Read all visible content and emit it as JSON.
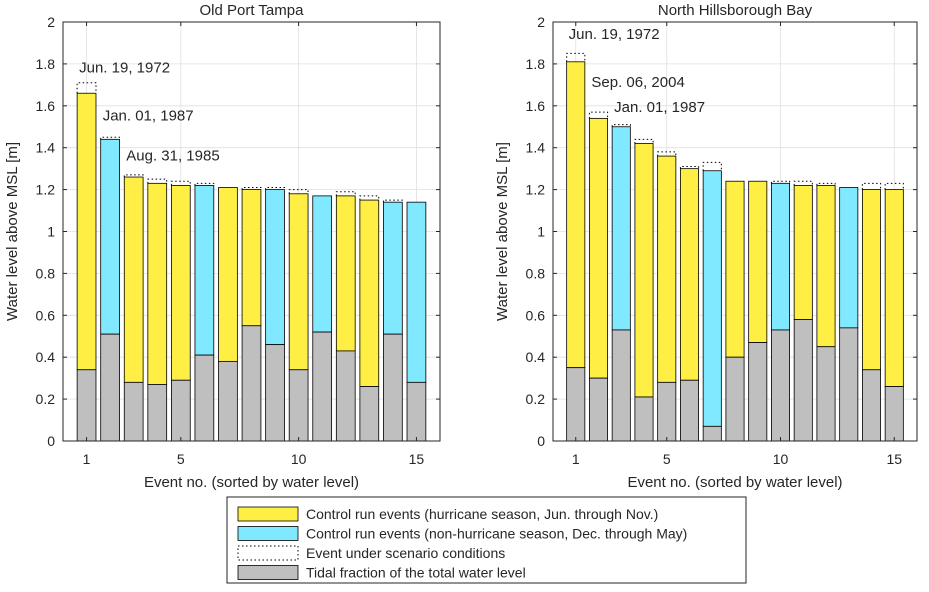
{
  "chart_data": [
    {
      "type": "bar",
      "title": "Old Port Tampa",
      "xlabel": "Event no. (sorted by water level)",
      "ylabel": "Water level above MSL [m]",
      "ylim": [
        0,
        2
      ],
      "yticks": [
        "0",
        "0.2",
        "0.4",
        "0.6",
        "0.8",
        "1",
        "1.2",
        "1.4",
        "1.6",
        "1.8",
        "2"
      ],
      "xticks": [
        1,
        5,
        10,
        15
      ],
      "grid": true,
      "events": [
        {
          "total": 1.66,
          "tidal": 0.34,
          "season": "hurricane",
          "scenario": 1.71
        },
        {
          "total": 1.44,
          "tidal": 0.51,
          "season": "non-hurricane",
          "scenario": 1.45
        },
        {
          "total": 1.26,
          "tidal": 0.28,
          "season": "hurricane",
          "scenario": 1.27
        },
        {
          "total": 1.23,
          "tidal": 0.27,
          "season": "hurricane",
          "scenario": 1.25
        },
        {
          "total": 1.22,
          "tidal": 0.29,
          "season": "hurricane",
          "scenario": 1.24
        },
        {
          "total": 1.22,
          "tidal": 0.41,
          "season": "non-hurricane",
          "scenario": 1.23
        },
        {
          "total": 1.21,
          "tidal": 0.38,
          "season": "hurricane",
          "scenario": 1.21
        },
        {
          "total": 1.2,
          "tidal": 0.55,
          "season": "hurricane",
          "scenario": 1.21
        },
        {
          "total": 1.2,
          "tidal": 0.46,
          "season": "non-hurricane",
          "scenario": 1.21
        },
        {
          "total": 1.18,
          "tidal": 0.34,
          "season": "hurricane",
          "scenario": 1.2
        },
        {
          "total": 1.17,
          "tidal": 0.52,
          "season": "non-hurricane",
          "scenario": 1.17
        },
        {
          "total": 1.17,
          "tidal": 0.43,
          "season": "hurricane",
          "scenario": 1.19
        },
        {
          "total": 1.15,
          "tidal": 0.26,
          "season": "hurricane",
          "scenario": 1.17
        },
        {
          "total": 1.14,
          "tidal": 0.51,
          "season": "non-hurricane",
          "scenario": 1.15
        },
        {
          "total": 1.14,
          "tidal": 0.28,
          "season": "non-hurricane",
          "scenario": 1.14
        }
      ],
      "annotations": [
        {
          "text": "Jun. 19, 1972",
          "x": 1,
          "y": 1.76
        },
        {
          "text": "Jan. 01, 1987",
          "x": 2,
          "y": 1.53
        },
        {
          "text": "Aug. 31, 1985",
          "x": 3,
          "y": 1.34
        }
      ]
    },
    {
      "type": "bar",
      "title": "North Hillsborough Bay",
      "xlabel": "Event no. (sorted by water level)",
      "ylabel": "Water level above MSL [m]",
      "ylim": [
        0,
        2
      ],
      "yticks": [
        "0",
        "0.2",
        "0.4",
        "0.6",
        "0.8",
        "1",
        "1.2",
        "1.4",
        "1.6",
        "1.8",
        "2"
      ],
      "xticks": [
        1,
        5,
        10,
        15
      ],
      "grid": true,
      "events": [
        {
          "total": 1.81,
          "tidal": 0.35,
          "season": "hurricane",
          "scenario": 1.85
        },
        {
          "total": 1.54,
          "tidal": 0.3,
          "season": "hurricane",
          "scenario": 1.57
        },
        {
          "total": 1.5,
          "tidal": 0.53,
          "season": "non-hurricane",
          "scenario": 1.51
        },
        {
          "total": 1.42,
          "tidal": 0.21,
          "season": "hurricane",
          "scenario": 1.44
        },
        {
          "total": 1.36,
          "tidal": 0.28,
          "season": "hurricane",
          "scenario": 1.38
        },
        {
          "total": 1.3,
          "tidal": 0.29,
          "season": "hurricane",
          "scenario": 1.31
        },
        {
          "total": 1.29,
          "tidal": 0.07,
          "season": "non-hurricane",
          "scenario": 1.33
        },
        {
          "total": 1.24,
          "tidal": 0.4,
          "season": "hurricane",
          "scenario": 1.24
        },
        {
          "total": 1.24,
          "tidal": 0.47,
          "season": "hurricane",
          "scenario": 1.24
        },
        {
          "total": 1.23,
          "tidal": 0.53,
          "season": "non-hurricane",
          "scenario": 1.24
        },
        {
          "total": 1.22,
          "tidal": 0.58,
          "season": "hurricane",
          "scenario": 1.24
        },
        {
          "total": 1.22,
          "tidal": 0.45,
          "season": "hurricane",
          "scenario": 1.23
        },
        {
          "total": 1.21,
          "tidal": 0.54,
          "season": "non-hurricane",
          "scenario": 1.21
        },
        {
          "total": 1.2,
          "tidal": 0.34,
          "season": "hurricane",
          "scenario": 1.23
        },
        {
          "total": 1.2,
          "tidal": 0.26,
          "season": "hurricane",
          "scenario": 1.23
        }
      ],
      "annotations": [
        {
          "text": "Jun. 19, 1972",
          "x": 1,
          "y": 1.92
        },
        {
          "text": "Sep. 06, 2004",
          "x": 2,
          "y": 1.69
        },
        {
          "text": "Jan. 01, 1987",
          "x": 3,
          "y": 1.57
        }
      ]
    }
  ],
  "legend": {
    "placement": "bottom-center",
    "entries": [
      {
        "label": "Control run events (hurricane season, Jun. through Nov.)",
        "kind": "hurricane"
      },
      {
        "label": "Control run events (non-hurricane season, Dec. through May)",
        "kind": "non-hurricane"
      },
      {
        "label": "Event under scenario conditions",
        "kind": "scenario"
      },
      {
        "label": "Tidal fraction of the total water level",
        "kind": "tidal"
      }
    ]
  },
  "colors": {
    "hurricane": "#ffee44",
    "non-hurricane": "#80e8ff",
    "tidal": "#bfbfbf",
    "grid": "#e0e0e0",
    "axis": "#262626"
  }
}
